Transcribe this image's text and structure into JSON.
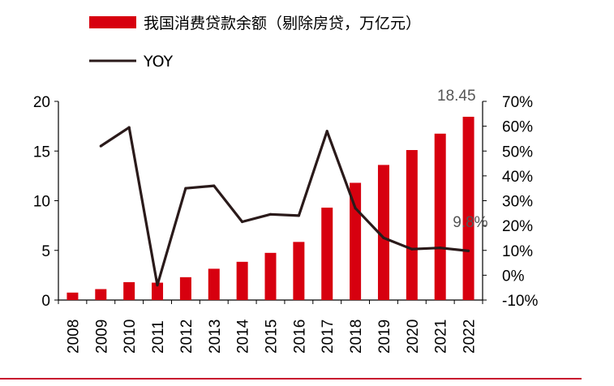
{
  "chart_data": {
    "type": "bar",
    "title": "",
    "xlabel": "",
    "ylabel": "",
    "categories": [
      "2008",
      "2009",
      "2010",
      "2011",
      "2012",
      "2013",
      "2014",
      "2015",
      "2016",
      "2017",
      "2018",
      "2019",
      "2020",
      "2021",
      "2022"
    ],
    "series": [
      {
        "name": "我国消费贷款余额（剔除房贷，万亿元）",
        "type": "bar",
        "axis": "left",
        "color": "#d7000f",
        "values": [
          0.75,
          1.1,
          1.8,
          1.75,
          2.3,
          3.15,
          3.85,
          4.75,
          5.85,
          9.3,
          11.8,
          13.6,
          15.1,
          16.75,
          18.45
        ]
      },
      {
        "name": "YOY",
        "type": "line",
        "axis": "right",
        "color": "#2a1a1a",
        "values": [
          null,
          52,
          59.5,
          -4,
          35,
          36,
          21.5,
          24.5,
          24,
          58,
          27,
          15,
          10.5,
          11,
          9.8
        ]
      }
    ],
    "ylim": [
      0,
      20
    ],
    "yticks": [
      "0",
      "5",
      "10",
      "15",
      "20"
    ],
    "y2lim": [
      -10,
      70
    ],
    "y2ticks": [
      "-10%",
      "0%",
      "10%",
      "20%",
      "30%",
      "40%",
      "50%",
      "60%",
      "70%"
    ],
    "annotations": {
      "last_bar_label": "18.45",
      "last_line_label": "9.8%"
    },
    "legend_position": "top-left",
    "grid": false
  }
}
